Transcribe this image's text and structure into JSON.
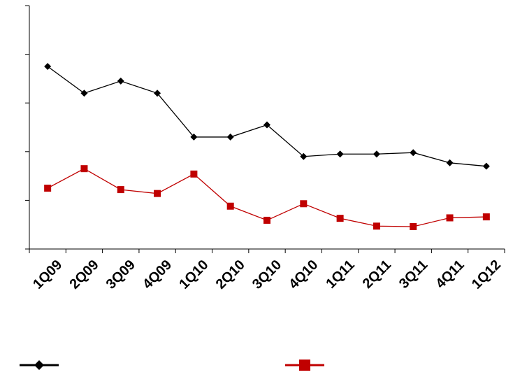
{
  "chart_data": {
    "type": "line",
    "title": "",
    "xlabel": "",
    "ylabel": "",
    "categories": [
      "1Q09",
      "2Q09",
      "3Q09",
      "4Q09",
      "1Q10",
      "2Q10",
      "3Q10",
      "4Q10",
      "1Q11",
      "2Q11",
      "3Q11",
      "4Q11",
      "1Q12"
    ],
    "ylim": [
      0,
      5
    ],
    "y_tick_count": 6,
    "y_tick_labels_shown": false,
    "grid": false,
    "legend": "bottom",
    "series": [
      {
        "color": "#000000",
        "marker": "diamond",
        "values": [
          3.75,
          3.2,
          3.45,
          3.2,
          2.3,
          2.3,
          2.55,
          1.9,
          1.95,
          1.95,
          1.98,
          1.77,
          1.7
        ]
      },
      {
        "color": "#c00000",
        "marker": "square",
        "values": [
          1.25,
          1.65,
          1.22,
          1.14,
          1.54,
          0.88,
          0.59,
          0.93,
          0.63,
          0.47,
          0.46,
          0.64,
          0.66
        ]
      }
    ]
  }
}
